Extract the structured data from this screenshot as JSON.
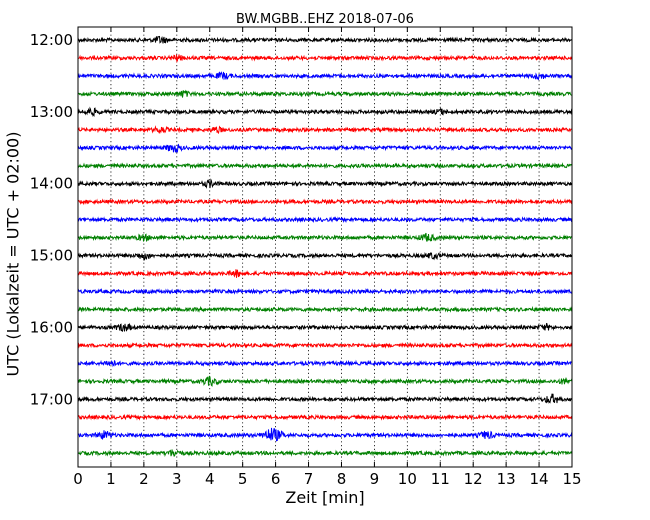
{
  "chart_data": {
    "type": "line",
    "title": "BW.MGBB..EHZ 2018-07-06",
    "xlabel": "Zeit  [min]",
    "ylabel": "UTC (Lokalzeit = UTC + 02:00)",
    "xlim": [
      0,
      15
    ],
    "x_ticks": [
      "0",
      "1",
      "2",
      "3",
      "4",
      "5",
      "6",
      "7",
      "8",
      "9",
      "10",
      "11",
      "12",
      "13",
      "14",
      "15"
    ],
    "y_tick_labels": [
      "12:00",
      "13:00",
      "14:00",
      "15:00",
      "16:00",
      "17:00"
    ],
    "vertical_grid": "dotted",
    "trace_start_times": [
      "12:00",
      "12:15",
      "12:30",
      "12:45",
      "13:00",
      "13:15",
      "13:30",
      "13:45",
      "14:00",
      "14:15",
      "14:30",
      "14:45",
      "15:00",
      "15:15",
      "15:30",
      "15:45",
      "16:00",
      "16:15",
      "16:30",
      "16:45",
      "17:00",
      "17:15",
      "17:30",
      "17:45"
    ],
    "trace_colors": [
      "#000000",
      "#ff0000",
      "#0000ff",
      "#008000"
    ],
    "events": [
      {
        "trace": "12:00",
        "min": 2.5,
        "amp": 1.6
      },
      {
        "trace": "12:15",
        "min": 3.0,
        "amp": 1.2
      },
      {
        "trace": "12:30",
        "min": 4.4,
        "amp": 1.4
      },
      {
        "trace": "12:30",
        "min": 14.0,
        "amp": 1.3
      },
      {
        "trace": "12:45",
        "min": 3.2,
        "amp": 1.3
      },
      {
        "trace": "13:00",
        "min": 0.4,
        "amp": 1.6
      },
      {
        "trace": "13:00",
        "min": 11.0,
        "amp": 1.1
      },
      {
        "trace": "13:15",
        "min": 2.5,
        "amp": 1.3
      },
      {
        "trace": "13:15",
        "min": 4.2,
        "amp": 1.2
      },
      {
        "trace": "13:30",
        "min": 2.9,
        "amp": 1.8
      },
      {
        "trace": "14:00",
        "min": 4.0,
        "amp": 1.4
      },
      {
        "trace": "14:45",
        "min": 2.0,
        "amp": 1.3
      },
      {
        "trace": "14:45",
        "min": 10.6,
        "amp": 1.7
      },
      {
        "trace": "15:00",
        "min": 2.0,
        "amp": 1.6
      },
      {
        "trace": "15:00",
        "min": 10.8,
        "amp": 1.2
      },
      {
        "trace": "15:15",
        "min": 4.8,
        "amp": 1.4
      },
      {
        "trace": "16:00",
        "min": 1.4,
        "amp": 1.7
      },
      {
        "trace": "16:00",
        "min": 14.2,
        "amp": 1.2
      },
      {
        "trace": "16:30",
        "min": 1.0,
        "amp": 1.2
      },
      {
        "trace": "16:45",
        "min": 4.0,
        "amp": 1.9
      },
      {
        "trace": "16:45",
        "min": 14.8,
        "amp": 1.2
      },
      {
        "trace": "17:00",
        "min": 14.4,
        "amp": 2.0
      },
      {
        "trace": "17:30",
        "min": 0.8,
        "amp": 1.8
      },
      {
        "trace": "17:30",
        "min": 5.9,
        "amp": 3.2
      },
      {
        "trace": "17:30",
        "min": 12.4,
        "amp": 1.7
      },
      {
        "trace": "17:45",
        "min": 2.9,
        "amp": 1.5
      }
    ]
  }
}
